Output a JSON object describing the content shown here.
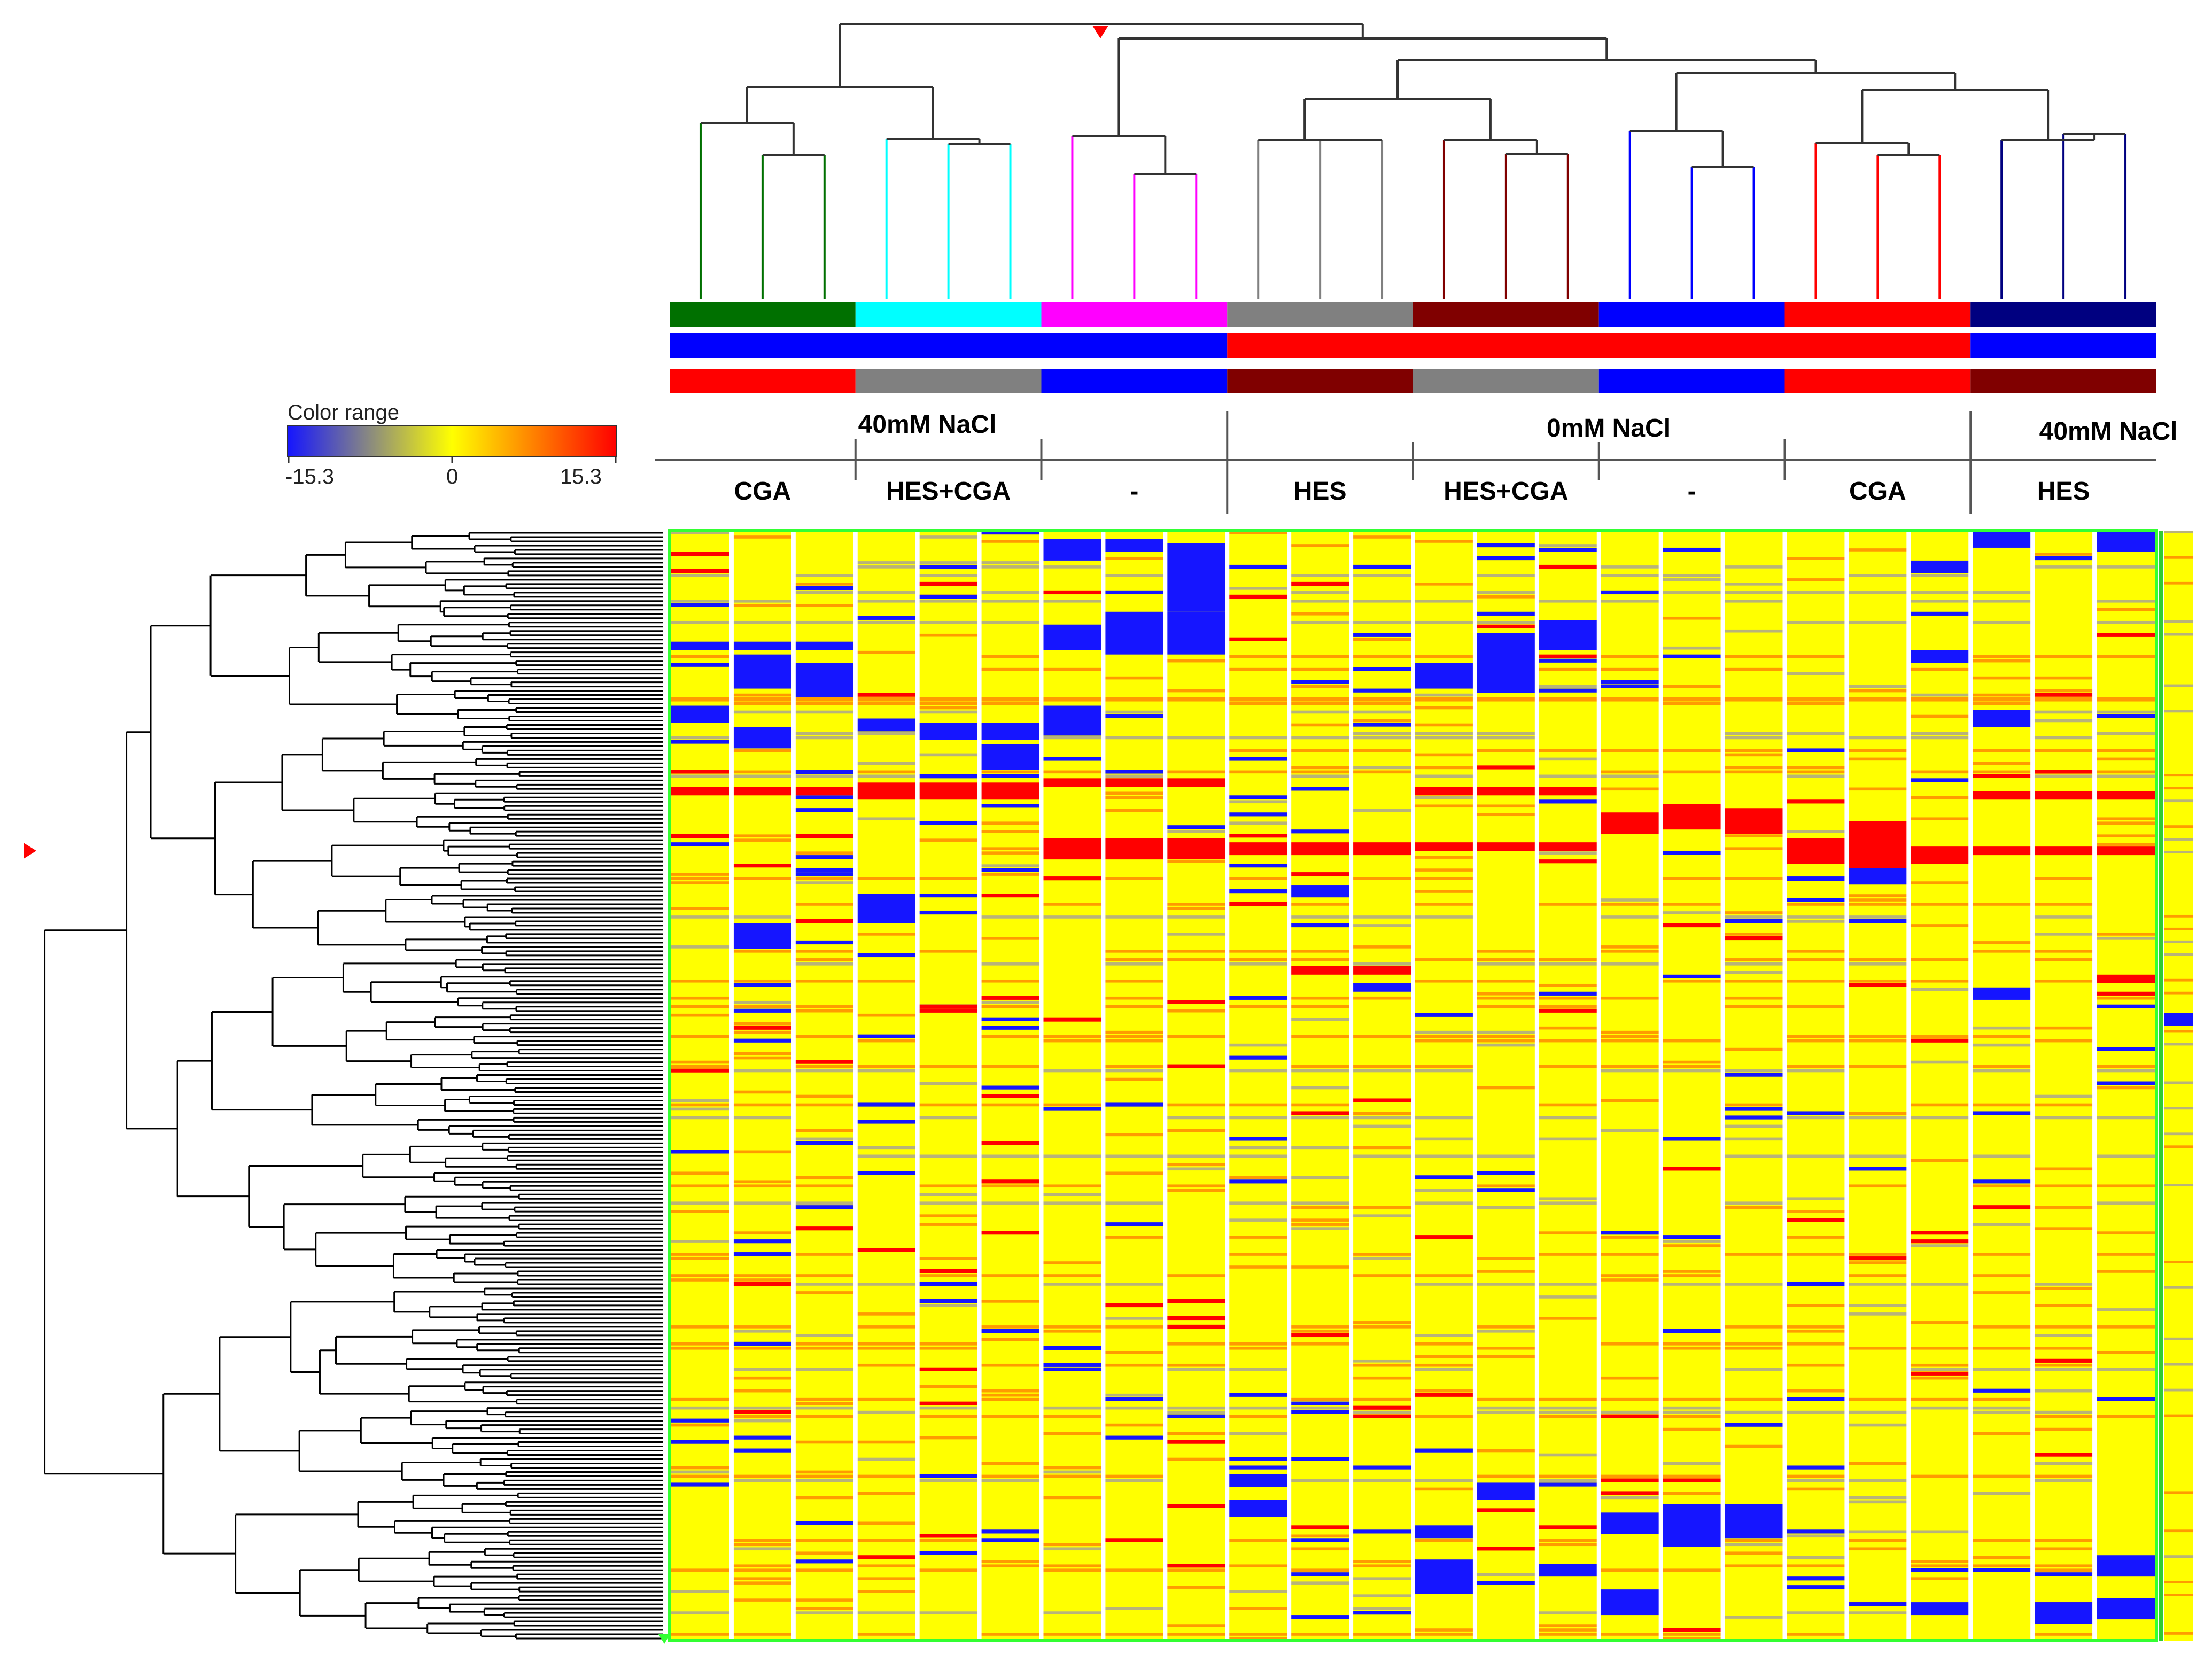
{
  "chart_data": {
    "type": "heatmap",
    "title": "",
    "color_range": {
      "label": "Color range",
      "min_label": "-15.3",
      "mid_label": "0",
      "max_label": "15.3",
      "min": -15.3,
      "mid": 0,
      "max": 15.3,
      "colors": [
        "#1515ff",
        "#ffff00",
        "#ff0000"
      ]
    },
    "salt_groups": [
      {
        "label": "40mM NaCl",
        "color": "#0000ff",
        "span": [
          0,
          9
        ]
      },
      {
        "label": "0mM NaCl",
        "color": "#ff0000",
        "span": [
          9,
          21
        ]
      },
      {
        "label": "40mM NaCl",
        "color": "#0000ff",
        "span": [
          21,
          24
        ]
      }
    ],
    "treatment_groups": [
      {
        "label": "CGA",
        "cluster_color": "#007000",
        "treat_color": "#ff0000",
        "n": 3
      },
      {
        "label": "HES+CGA",
        "cluster_color": "#00ffff",
        "treat_color": "#808080",
        "n": 3
      },
      {
        "label": "-",
        "cluster_color": "#ff00ff",
        "treat_color": "#0000ff",
        "n": 3
      },
      {
        "label": "HES",
        "cluster_color": "#808080",
        "treat_color": "#800000",
        "n": 3
      },
      {
        "label": "HES+CGA",
        "cluster_color": "#800000",
        "treat_color": "#808080",
        "n": 3
      },
      {
        "label": "-",
        "cluster_color": "#0000ff",
        "treat_color": "#0000ff",
        "n": 3
      },
      {
        "label": "CGA",
        "cluster_color": "#ff0000",
        "treat_color": "#ff0000",
        "n": 3
      },
      {
        "label": "HES",
        "cluster_color": "#000080",
        "treat_color": "#800000",
        "n": 3
      }
    ],
    "n_samples": 24,
    "n_rows": 260,
    "cell_values": {
      "yellow_base": 0,
      "orange": 6,
      "gray": -5,
      "red": 15.3,
      "blue": -15.3
    },
    "bands": [
      {
        "cols": [
          0,
          1,
          2
        ],
        "rows": [
          26,
          28
        ],
        "value": -15.3
      },
      {
        "cols": [
          1
        ],
        "rows": [
          29,
          37
        ],
        "value": -15.3
      },
      {
        "cols": [
          2
        ],
        "rows": [
          31,
          39
        ],
        "value": -15.3
      },
      {
        "cols": [
          0
        ],
        "rows": [
          41,
          45
        ],
        "value": -15.3
      },
      {
        "cols": [
          1
        ],
        "rows": [
          46,
          51
        ],
        "value": -15.3
      },
      {
        "cols": [
          0,
          1,
          2
        ],
        "rows": [
          39,
          40
        ],
        "value": 6
      },
      {
        "cols": [
          2
        ],
        "rows": [
          56,
          57
        ],
        "value": -15.3
      },
      {
        "cols": [
          0,
          1,
          2
        ],
        "rows": [
          60,
          62
        ],
        "value": 15.3
      },
      {
        "cols": [
          0,
          2
        ],
        "rows": [
          71,
          72
        ],
        "value": 15.3
      },
      {
        "cols": [
          2
        ],
        "rows": [
          80,
          81
        ],
        "value": -15.3
      },
      {
        "cols": [
          1
        ],
        "rows": [
          92,
          98
        ],
        "value": -15.3
      },
      {
        "cols": [
          3
        ],
        "rows": [
          44,
          47
        ],
        "value": -15.3
      },
      {
        "cols": [
          4,
          5
        ],
        "rows": [
          45,
          49
        ],
        "value": -15.3
      },
      {
        "cols": [
          3,
          4,
          5
        ],
        "rows": [
          39,
          40
        ],
        "value": 6
      },
      {
        "cols": [
          5
        ],
        "rows": [
          50,
          56
        ],
        "value": -15.3
      },
      {
        "cols": [
          4
        ],
        "rows": [
          57,
          58
        ],
        "value": -15.3
      },
      {
        "cols": [
          3,
          4,
          5
        ],
        "rows": [
          59,
          63
        ],
        "value": 15.3
      },
      {
        "cols": [
          3
        ],
        "rows": [
          85,
          92
        ],
        "value": -15.3
      },
      {
        "cols": [
          4
        ],
        "rows": [
          111,
          112
        ],
        "value": 15.3
      },
      {
        "cols": [
          6
        ],
        "rows": [
          2,
          7
        ],
        "value": -15.3
      },
      {
        "cols": [
          7
        ],
        "rows": [
          2,
          5
        ],
        "value": -15.3
      },
      {
        "cols": [
          8
        ],
        "rows": [
          3,
          19
        ],
        "value": -15.3
      },
      {
        "cols": [
          7
        ],
        "rows": [
          19,
          29
        ],
        "value": -15.3
      },
      {
        "cols": [
          8
        ],
        "rows": [
          19,
          29
        ],
        "value": -15.3
      },
      {
        "cols": [
          6
        ],
        "rows": [
          22,
          28
        ],
        "value": -15.3
      },
      {
        "cols": [
          6
        ],
        "rows": [
          41,
          48
        ],
        "value": -15.3
      },
      {
        "cols": [
          6,
          7,
          8
        ],
        "rows": [
          39,
          40
        ],
        "value": 6
      },
      {
        "cols": [
          6,
          7,
          8
        ],
        "rows": [
          58,
          60
        ],
        "value": 15.3
      },
      {
        "cols": [
          6,
          7,
          8
        ],
        "rows": [
          72,
          77
        ],
        "value": 15.3
      },
      {
        "cols": [
          6
        ],
        "rows": [
          114,
          115
        ],
        "value": 15.3
      },
      {
        "cols": [
          9,
          10,
          11
        ],
        "rows": [
          39,
          40
        ],
        "value": 6
      },
      {
        "cols": [
          9,
          10,
          11
        ],
        "rows": [
          73,
          76
        ],
        "value": 15.3
      },
      {
        "cols": [
          10
        ],
        "rows": [
          83,
          85
        ],
        "value": -15.3
      },
      {
        "cols": [
          10,
          11
        ],
        "rows": [
          102,
          104
        ],
        "value": 15.3
      },
      {
        "cols": [
          11
        ],
        "rows": [
          106,
          108
        ],
        "value": -15.3
      },
      {
        "cols": [
          9
        ],
        "rows": [
          221,
          224
        ],
        "value": -15.3
      },
      {
        "cols": [
          9
        ],
        "rows": [
          227,
          231
        ],
        "value": -15.3
      },
      {
        "cols": [
          12
        ],
        "rows": [
          31,
          37
        ],
        "value": -15.3
      },
      {
        "cols": [
          13
        ],
        "rows": [
          24,
          38
        ],
        "value": -15.3
      },
      {
        "cols": [
          14
        ],
        "rows": [
          21,
          28
        ],
        "value": -15.3
      },
      {
        "cols": [
          12,
          13,
          14
        ],
        "rows": [
          39,
          40
        ],
        "value": 6
      },
      {
        "cols": [
          12,
          13,
          14
        ],
        "rows": [
          60,
          62
        ],
        "value": 15.3
      },
      {
        "cols": [
          12,
          13,
          14
        ],
        "rows": [
          73,
          75
        ],
        "value": 15.3
      },
      {
        "cols": [
          12
        ],
        "rows": [
          233,
          236
        ],
        "value": -15.3
      },
      {
        "cols": [
          12
        ],
        "rows": [
          241,
          249
        ],
        "value": -15.3
      },
      {
        "cols": [
          13
        ],
        "rows": [
          223,
          227
        ],
        "value": -15.3
      },
      {
        "cols": [
          14
        ],
        "rows": [
          242,
          245
        ],
        "value": -15.3
      },
      {
        "cols": [
          15
        ],
        "rows": [
          66,
          71
        ],
        "value": 15.3
      },
      {
        "cols": [
          16
        ],
        "rows": [
          64,
          70
        ],
        "value": 15.3
      },
      {
        "cols": [
          17
        ],
        "rows": [
          65,
          71
        ],
        "value": 15.3
      },
      {
        "cols": [
          15,
          16,
          17
        ],
        "rows": [
          39,
          40
        ],
        "value": 6
      },
      {
        "cols": [
          15
        ],
        "rows": [
          230,
          235
        ],
        "value": -15.3
      },
      {
        "cols": [
          16
        ],
        "rows": [
          228,
          238
        ],
        "value": -15.3
      },
      {
        "cols": [
          17
        ],
        "rows": [
          228,
          236
        ],
        "value": -15.3
      },
      {
        "cols": [
          15
        ],
        "rows": [
          248,
          254
        ],
        "value": -15.3
      },
      {
        "cols": [
          18
        ],
        "rows": [
          72,
          78
        ],
        "value": 15.3
      },
      {
        "cols": [
          19
        ],
        "rows": [
          68,
          79
        ],
        "value": 15.3
      },
      {
        "cols": [
          20
        ],
        "rows": [
          74,
          78
        ],
        "value": 15.3
      },
      {
        "cols": [
          19
        ],
        "rows": [
          79,
          82
        ],
        "value": -15.3
      },
      {
        "cols": [
          18
        ],
        "rows": [
          81,
          82
        ],
        "value": -15.3
      },
      {
        "cols": [
          18,
          19,
          20
        ],
        "rows": [
          39,
          40
        ],
        "value": 6
      },
      {
        "cols": [
          20
        ],
        "rows": [
          7,
          10
        ],
        "value": -15.3
      },
      {
        "cols": [
          20
        ],
        "rows": [
          28,
          31
        ],
        "value": -15.3
      },
      {
        "cols": [
          20
        ],
        "rows": [
          251,
          254
        ],
        "value": -15.3
      },
      {
        "cols": [
          21
        ],
        "rows": [
          0,
          4
        ],
        "value": -15.3
      },
      {
        "cols": [
          23
        ],
        "rows": [
          0,
          5
        ],
        "value": -15.3
      },
      {
        "cols": [
          21
        ],
        "rows": [
          42,
          46
        ],
        "value": -15.3
      },
      {
        "cols": [
          21,
          22,
          23
        ],
        "rows": [
          39,
          40
        ],
        "value": 6
      },
      {
        "cols": [
          21,
          22,
          23
        ],
        "rows": [
          61,
          63
        ],
        "value": 15.3
      },
      {
        "cols": [
          21,
          22,
          23
        ],
        "rows": [
          74,
          76
        ],
        "value": 15.3
      },
      {
        "cols": [
          23
        ],
        "rows": [
          104,
          106
        ],
        "value": 15.3
      },
      {
        "cols": [
          21
        ],
        "rows": [
          107,
          109
        ],
        "value": -15.3
      },
      {
        "cols": [
          22
        ],
        "rows": [
          251,
          256
        ],
        "value": -15.3
      },
      {
        "cols": [
          23
        ],
        "rows": [
          250,
          255
        ],
        "value": -15.3
      },
      {
        "cols": [
          23
        ],
        "rows": [
          240,
          245
        ],
        "value": -15.3
      }
    ]
  }
}
